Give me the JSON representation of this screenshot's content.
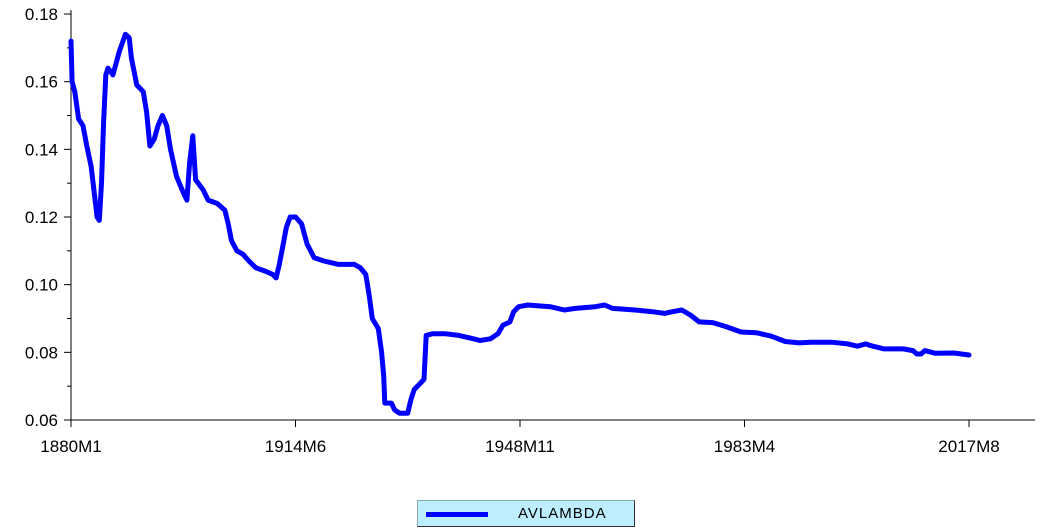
{
  "chart_data": {
    "type": "line",
    "ylim": [
      0.06,
      0.18
    ],
    "y_ticks": [
      "0.06",
      "0.08",
      "0.10",
      "0.12",
      "0.14",
      "0.16",
      "0.18"
    ],
    "x_ticks": [
      "1880M1",
      "1914M6",
      "1948M11",
      "1983M4",
      "2017M8"
    ],
    "x_range": [
      "1880-01",
      "2017-08"
    ],
    "grid": false,
    "legend_position": "bottom-center",
    "series": [
      {
        "name": "AVLAMBDA",
        "color": "#0000ff",
        "points": [
          [
            "1880-01",
            0.172
          ],
          [
            "1880-03",
            0.16
          ],
          [
            "1880-08",
            0.157
          ],
          [
            "1881-03",
            0.149
          ],
          [
            "1881-11",
            0.147
          ],
          [
            "1882-06",
            0.141
          ],
          [
            "1883-02",
            0.135
          ],
          [
            "1884-01",
            0.12
          ],
          [
            "1884-05",
            0.119
          ],
          [
            "1884-09",
            0.13
          ],
          [
            "1885-01",
            0.148
          ],
          [
            "1885-05",
            0.162
          ],
          [
            "1885-09",
            0.164
          ],
          [
            "1886-02",
            0.163
          ],
          [
            "1886-06",
            0.162
          ],
          [
            "1887-06",
            0.169
          ],
          [
            "1888-05",
            0.174
          ],
          [
            "1888-12",
            0.173
          ],
          [
            "1889-04",
            0.167
          ],
          [
            "1890-02",
            0.159
          ],
          [
            "1891-02",
            0.157
          ],
          [
            "1891-08",
            0.151
          ],
          [
            "1892-02",
            0.141
          ],
          [
            "1892-10",
            0.143
          ],
          [
            "1893-05",
            0.147
          ],
          [
            "1894-01",
            0.15
          ],
          [
            "1894-09",
            0.147
          ],
          [
            "1895-04",
            0.14
          ],
          [
            "1896-03",
            0.132
          ],
          [
            "1897-04",
            0.127
          ],
          [
            "1897-10",
            0.125
          ],
          [
            "1898-03",
            0.136
          ],
          [
            "1898-09",
            0.144
          ],
          [
            "1899-02",
            0.131
          ],
          [
            "1900-04",
            0.128
          ],
          [
            "1901-01",
            0.125
          ],
          [
            "1902-06",
            0.124
          ],
          [
            "1903-08",
            0.122
          ],
          [
            "1904-02",
            0.118
          ],
          [
            "1904-08",
            0.113
          ],
          [
            "1905-06",
            0.11
          ],
          [
            "1906-05",
            0.109
          ],
          [
            "1907-04",
            0.107
          ],
          [
            "1908-05",
            0.105
          ],
          [
            "1909-10",
            0.104
          ],
          [
            "1910-12",
            0.103
          ],
          [
            "1911-06",
            0.102
          ],
          [
            "1911-12",
            0.106
          ],
          [
            "1912-06",
            0.111
          ],
          [
            "1913-01",
            0.117
          ],
          [
            "1913-08",
            0.12
          ],
          [
            "1914-06",
            0.12
          ],
          [
            "1915-05",
            0.118
          ],
          [
            "1916-03",
            0.112
          ],
          [
            "1917-04",
            0.108
          ],
          [
            "1918-10",
            0.107
          ],
          [
            "1921-01",
            0.106
          ],
          [
            "1923-06",
            0.106
          ],
          [
            "1924-05",
            0.105
          ],
          [
            "1925-03",
            0.103
          ],
          [
            "1925-09",
            0.097
          ],
          [
            "1926-03",
            0.09
          ],
          [
            "1927-02",
            0.087
          ],
          [
            "1927-08",
            0.08
          ],
          [
            "1927-12",
            0.073
          ],
          [
            "1928-02",
            0.065
          ],
          [
            "1929-02",
            0.065
          ],
          [
            "1929-08",
            0.063
          ],
          [
            "1930-05",
            0.062
          ],
          [
            "1931-08",
            0.062
          ],
          [
            "1932-02",
            0.066
          ],
          [
            "1932-08",
            0.069
          ],
          [
            "1933-02",
            0.07
          ],
          [
            "1934-02",
            0.072
          ],
          [
            "1934-06",
            0.085
          ],
          [
            "1935-06",
            0.0855
          ],
          [
            "1937-04",
            0.0855
          ],
          [
            "1939-06",
            0.085
          ],
          [
            "1941-09",
            0.084
          ],
          [
            "1942-09",
            0.0835
          ],
          [
            "1944-04",
            0.084
          ],
          [
            "1945-06",
            0.0855
          ],
          [
            "1946-03",
            0.088
          ],
          [
            "1947-04",
            0.089
          ],
          [
            "1947-11",
            0.092
          ],
          [
            "1948-08",
            0.0935
          ],
          [
            "1950-01",
            0.094
          ],
          [
            "1953-06",
            0.0935
          ],
          [
            "1955-08",
            0.0925
          ],
          [
            "1957-04",
            0.093
          ],
          [
            "1960-05",
            0.0935
          ],
          [
            "1961-10",
            0.094
          ],
          [
            "1963-01",
            0.093
          ],
          [
            "1966-06",
            0.0925
          ],
          [
            "1969-02",
            0.092
          ],
          [
            "1970-12",
            0.0915
          ],
          [
            "1972-03",
            0.092
          ],
          [
            "1973-08",
            0.0925
          ],
          [
            "1974-12",
            0.091
          ],
          [
            "1976-04",
            0.089
          ],
          [
            "1978-05",
            0.0888
          ],
          [
            "1980-05",
            0.0876
          ],
          [
            "1982-09",
            0.086
          ],
          [
            "1985-01",
            0.0858
          ],
          [
            "1987-04",
            0.0848
          ],
          [
            "1989-06",
            0.0832
          ],
          [
            "1991-08",
            0.0828
          ],
          [
            "1993-05",
            0.083
          ],
          [
            "1996-07",
            0.083
          ],
          [
            "1999-01",
            0.0825
          ],
          [
            "2000-07",
            0.0818
          ],
          [
            "2001-10",
            0.0825
          ],
          [
            "2002-07",
            0.082
          ],
          [
            "2004-08",
            0.081
          ],
          [
            "2007-07",
            0.081
          ],
          [
            "2009-01",
            0.0805
          ],
          [
            "2009-08",
            0.0795
          ],
          [
            "2010-04",
            0.0795
          ],
          [
            "2010-11",
            0.0805
          ],
          [
            "2012-06",
            0.0797
          ],
          [
            "2015-04",
            0.0798
          ],
          [
            "2017-08",
            0.0792
          ]
        ]
      }
    ]
  }
}
